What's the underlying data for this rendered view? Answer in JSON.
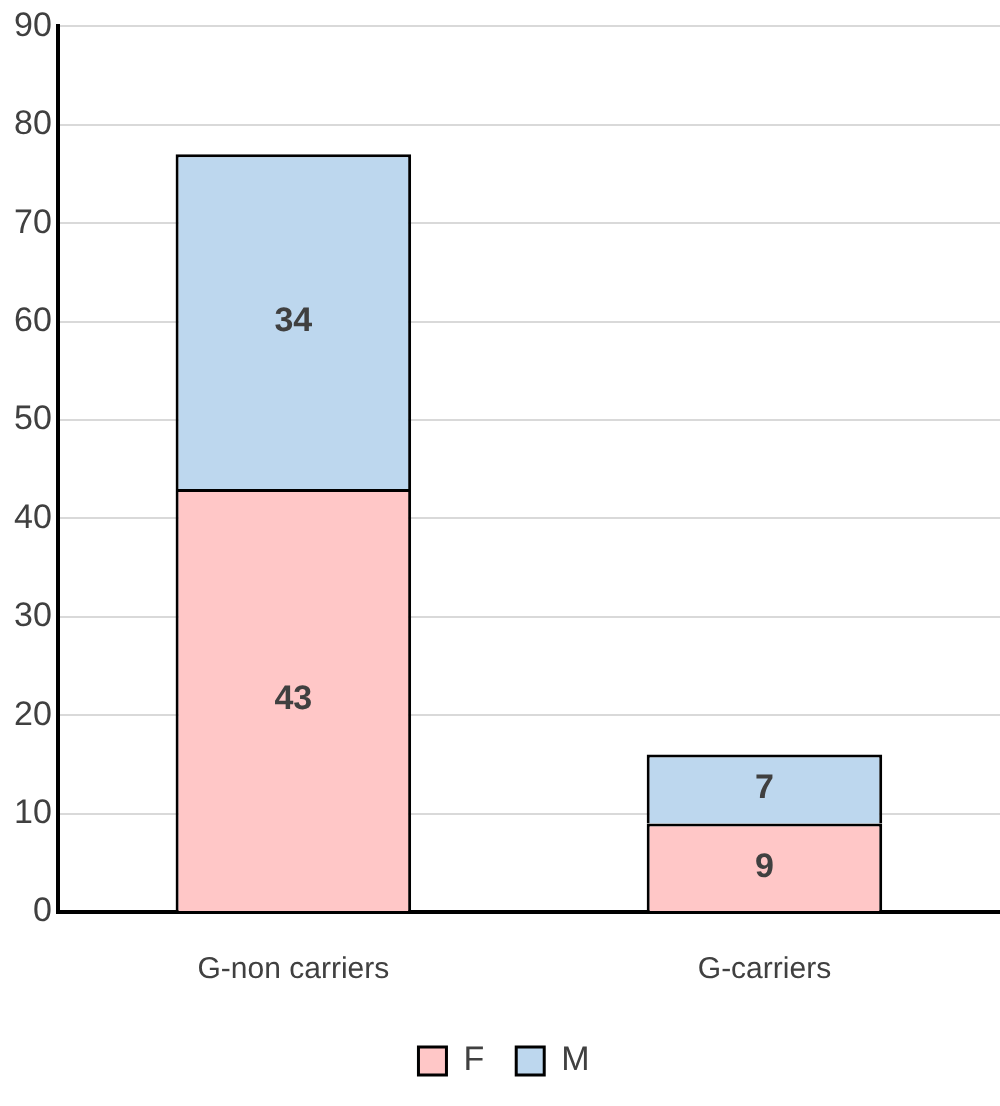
{
  "chart_data": {
    "type": "bar",
    "stacked": true,
    "categories": [
      "G-non carriers",
      "G-carriers"
    ],
    "series": [
      {
        "name": "F",
        "color": "#ffc7c7",
        "values": [
          43,
          9
        ]
      },
      {
        "name": "M",
        "color": "#bdd7ee",
        "values": [
          34,
          7
        ]
      }
    ],
    "ylim": [
      0,
      90
    ],
    "yticks": [
      0,
      10,
      20,
      30,
      40,
      50,
      60,
      70,
      80,
      90
    ],
    "grid": "y",
    "legend": "bottom",
    "data_labels": true
  }
}
